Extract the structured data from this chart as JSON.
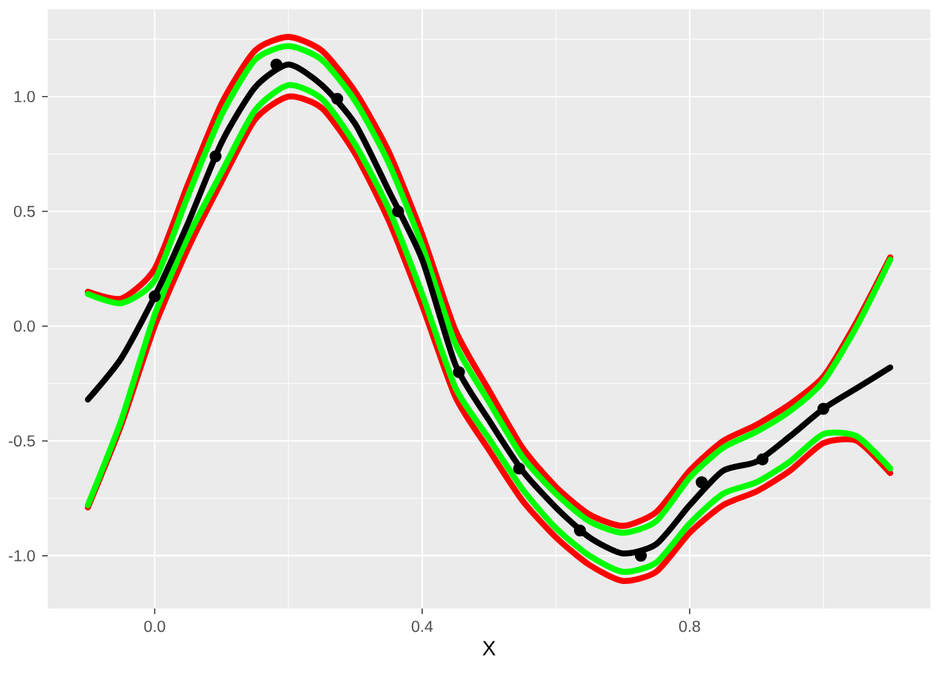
{
  "chart_data": {
    "type": "line",
    "xlabel": "X",
    "xlim": [
      -0.16,
      1.16
    ],
    "ylim": [
      -1.23,
      1.38
    ],
    "xticks": [
      {
        "value": 0,
        "label": "0.0"
      },
      0.4,
      0.8
    ],
    "yticks": [
      {
        "value": -1,
        "label": "-1.0"
      },
      -0.5,
      {
        "value": 0,
        "label": "0.0"
      },
      0.5,
      {
        "value": 1,
        "label": "1.0"
      }
    ],
    "grid": true,
    "series": [
      {
        "color": "#ff0000",
        "x": [
          -0.1,
          -0.05,
          0,
          0.05,
          0.1,
          0.15,
          0.2,
          0.25,
          0.3,
          0.35,
          0.4,
          0.45,
          0.5,
          0.55,
          0.6,
          0.65,
          0.7,
          0.75,
          0.8,
          0.85,
          0.9,
          0.95,
          1.0,
          1.05,
          1.1
        ],
        "values": [
          0.15,
          0.12,
          0.25,
          0.62,
          0.97,
          1.2,
          1.26,
          1.2,
          1.02,
          0.76,
          0.4,
          -0.02,
          -0.28,
          -0.53,
          -0.7,
          -0.82,
          -0.87,
          -0.81,
          -0.63,
          -0.5,
          -0.43,
          -0.34,
          -0.22,
          0.02,
          0.3
        ]
      },
      {
        "color": "#ff0000",
        "x": [
          -0.1,
          -0.05,
          0,
          0.05,
          0.1,
          0.15,
          0.2,
          0.25,
          0.3,
          0.35,
          0.4,
          0.45,
          0.5,
          0.55,
          0.6,
          0.65,
          0.7,
          0.75,
          0.8,
          0.85,
          0.9,
          0.95,
          1.0,
          1.05,
          1.1
        ],
        "values": [
          -0.79,
          -0.43,
          0.0,
          0.34,
          0.63,
          0.9,
          1.0,
          0.95,
          0.75,
          0.46,
          0.09,
          -0.31,
          -0.54,
          -0.76,
          -0.92,
          -1.04,
          -1.11,
          -1.07,
          -0.9,
          -0.78,
          -0.72,
          -0.63,
          -0.51,
          -0.5,
          -0.64
        ]
      },
      {
        "color": "#00ff00",
        "x": [
          -0.1,
          -0.05,
          0,
          0.05,
          0.1,
          0.15,
          0.2,
          0.25,
          0.3,
          0.35,
          0.4,
          0.45,
          0.5,
          0.55,
          0.6,
          0.65,
          0.7,
          0.75,
          0.8,
          0.85,
          0.9,
          0.95,
          1.0,
          1.05,
          1.1
        ],
        "values": [
          0.14,
          0.1,
          0.2,
          0.57,
          0.92,
          1.16,
          1.22,
          1.16,
          0.98,
          0.71,
          0.35,
          -0.08,
          -0.33,
          -0.57,
          -0.73,
          -0.85,
          -0.9,
          -0.85,
          -0.66,
          -0.53,
          -0.46,
          -0.37,
          -0.24,
          0.0,
          0.29
        ]
      },
      {
        "color": "#00ff00",
        "x": [
          -0.1,
          -0.05,
          0,
          0.05,
          0.1,
          0.15,
          0.2,
          0.25,
          0.3,
          0.35,
          0.4,
          0.45,
          0.5,
          0.55,
          0.6,
          0.65,
          0.7,
          0.75,
          0.8,
          0.85,
          0.9,
          0.95,
          1.0,
          1.05,
          1.1
        ],
        "values": [
          -0.78,
          -0.41,
          0.05,
          0.39,
          0.67,
          0.94,
          1.05,
          0.99,
          0.79,
          0.51,
          0.14,
          -0.27,
          -0.49,
          -0.71,
          -0.88,
          -1.0,
          -1.07,
          -1.03,
          -0.86,
          -0.73,
          -0.68,
          -0.59,
          -0.47,
          -0.48,
          -0.62
        ]
      },
      {
        "color": "#000000",
        "x": [
          -0.1,
          -0.05,
          0,
          0.05,
          0.1,
          0.15,
          0.2,
          0.25,
          0.3,
          0.35,
          0.4,
          0.45,
          0.5,
          0.55,
          0.6,
          0.65,
          0.7,
          0.75,
          0.8,
          0.85,
          0.9,
          0.95,
          1.0,
          1.05,
          1.1
        ],
        "values": [
          -0.32,
          -0.14,
          0.13,
          0.45,
          0.8,
          1.04,
          1.14,
          1.05,
          0.88,
          0.59,
          0.29,
          -0.17,
          -0.41,
          -0.63,
          -0.79,
          -0.92,
          -0.99,
          -0.95,
          -0.78,
          -0.63,
          -0.59,
          -0.48,
          -0.36,
          -0.27,
          -0.18
        ]
      },
      {
        "type": "scatter",
        "color": "#000000",
        "x": [
          0,
          0.091,
          0.182,
          0.273,
          0.364,
          0.455,
          0.545,
          0.636,
          0.727,
          0.818,
          0.909,
          1.0
        ],
        "values": [
          0.13,
          0.74,
          1.14,
          0.99,
          0.5,
          -0.2,
          -0.62,
          -0.89,
          -1.0,
          -0.68,
          -0.58,
          -0.36
        ]
      }
    ]
  }
}
